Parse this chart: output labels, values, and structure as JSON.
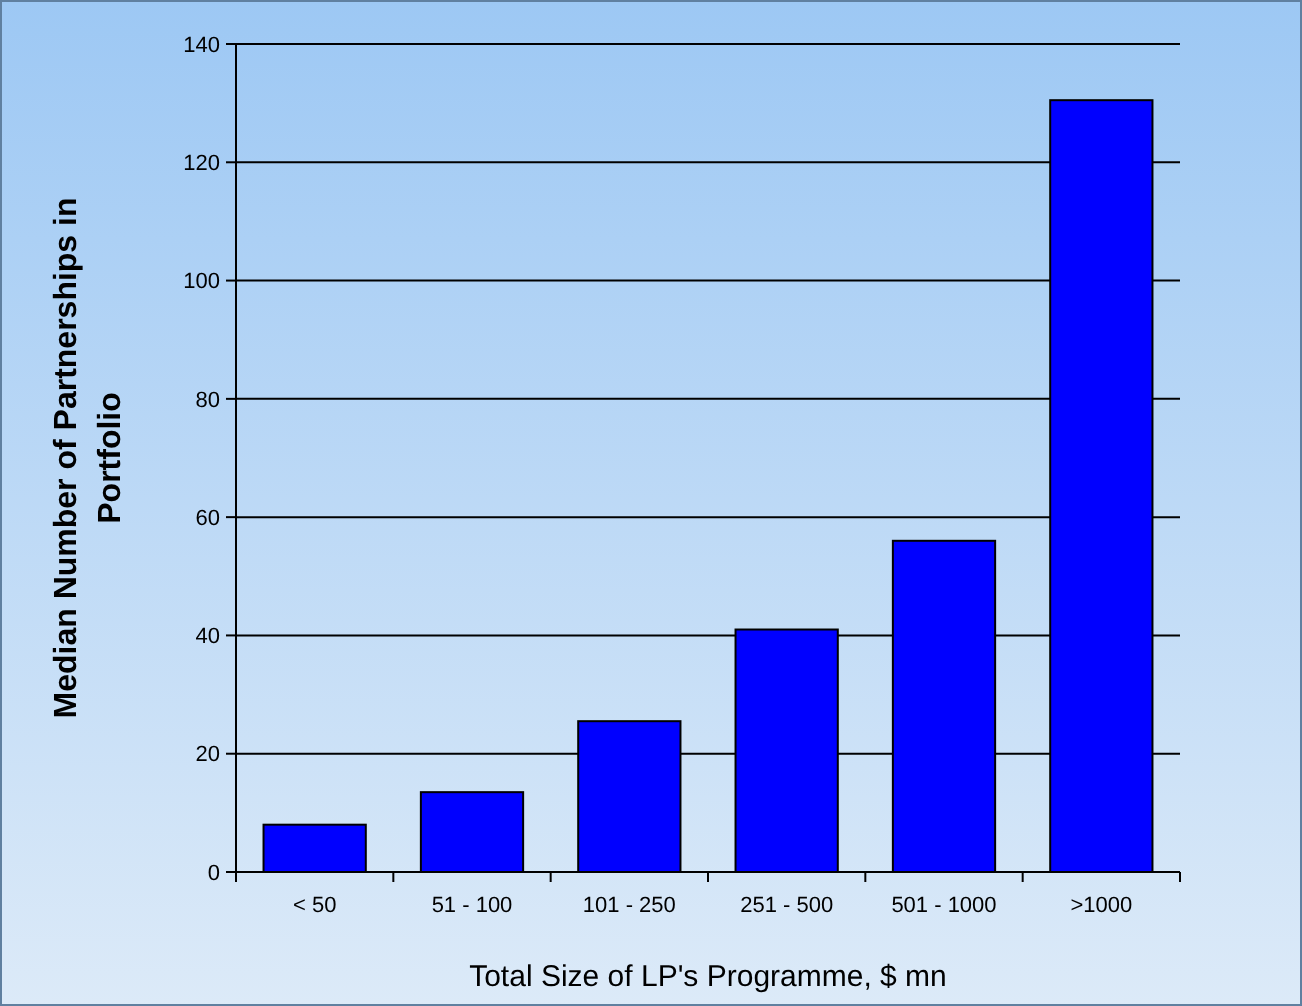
{
  "chart_data": {
    "type": "bar",
    "xlabel": "Total Size of LP's Programme, $ mn",
    "ylabel": "Median Number of Partnerships in Portfolio",
    "categories": [
      "< 50",
      "51 - 100",
      "101 - 250",
      "251 - 500",
      "501 - 1000",
      ">1000"
    ],
    "values": [
      8,
      13.5,
      25.5,
      41,
      56,
      130.5
    ],
    "color": "#0000ff",
    "ylim": [
      0,
      140
    ],
    "yticks": [
      0,
      20,
      40,
      60,
      80,
      100,
      120,
      140
    ],
    "grid": "y"
  }
}
